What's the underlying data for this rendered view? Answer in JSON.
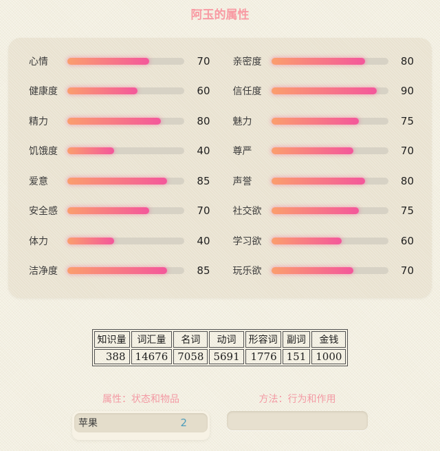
{
  "title": "阿玉的属性",
  "colors": {
    "accent_pink": "#f89aa3",
    "heading_pink": "#f39aa4",
    "bar_gradient_start": "#fb9e6e",
    "bar_gradient_end": "#f4579b",
    "bar_track": "#d7d2c5",
    "panel_bg": "#e9e2d0",
    "page_bg": "#f3efe1",
    "count_teal": "#4d9cba"
  },
  "stats_panel": {
    "max": 100,
    "left": [
      {
        "label": "心情",
        "value": 70
      },
      {
        "label": "健康度",
        "value": 60
      },
      {
        "label": "精力",
        "value": 80
      },
      {
        "label": "饥饿度",
        "value": 40
      },
      {
        "label": "爱意",
        "value": 85
      },
      {
        "label": "安全感",
        "value": 70
      },
      {
        "label": "体力",
        "value": 40
      },
      {
        "label": "洁净度",
        "value": 85
      }
    ],
    "right": [
      {
        "label": "亲密度",
        "value": 80
      },
      {
        "label": "信任度",
        "value": 90
      },
      {
        "label": "魅力",
        "value": 75
      },
      {
        "label": "尊严",
        "value": 70
      },
      {
        "label": "声誉",
        "value": 80
      },
      {
        "label": "社交欲",
        "value": 75
      },
      {
        "label": "学习欲",
        "value": 60
      },
      {
        "label": "玩乐欲",
        "value": 70
      }
    ]
  },
  "vocab_table": {
    "headers": [
      "知识量",
      "词汇量",
      "名词",
      "动词",
      "形容词",
      "副词",
      "金钱"
    ],
    "values": [
      "388",
      "14676",
      "7058",
      "5691",
      "1776",
      "151",
      "1000"
    ]
  },
  "sections": {
    "attributes_heading": "属性：状态和物品",
    "methods_heading": "方法：行为和作用",
    "inventory": [
      {
        "name": "苹果",
        "count": "2"
      }
    ]
  }
}
